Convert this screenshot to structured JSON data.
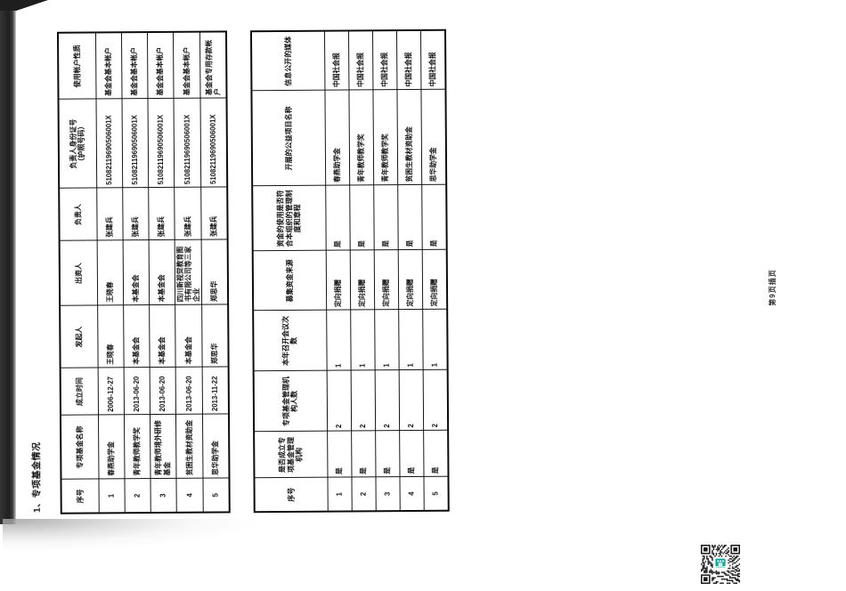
{
  "page": {
    "section_title": "1、专项基金情况",
    "side_label": "第9页插页"
  },
  "fund_table": {
    "headers": [
      "序号",
      "专项基金名称",
      "成立时间",
      "发起人",
      "出资人",
      "负责人",
      "负责人身份证号\n（护照号码）",
      "使用帐户性质"
    ],
    "rows": [
      [
        "1",
        "春燕助学金",
        "2006-12-27",
        "王晓春",
        "王晓春",
        "张建兵",
        "51082119690506001X",
        "基金会基本帐户"
      ],
      [
        "2",
        "青年教师教学奖",
        "2013-06-20",
        "本基金会",
        "本基金会",
        "张建兵",
        "51082119690506001X",
        "基金会基本帐户"
      ],
      [
        "3",
        "青年教师境外研修基金",
        "2013-06-20",
        "本基金会",
        "本基金会",
        "张建兵",
        "51082119690506001X",
        "基金会基本帐户"
      ],
      [
        "4",
        "贫困生教材资助金",
        "2013-06-20",
        "本基金会",
        "四川新视觉教育图书有限公司等三家企业",
        "张建兵",
        "51082119690506001X",
        "基金会基本帐户"
      ],
      [
        "5",
        "思华助学金",
        "2013-11-22",
        "郑思华",
        "郑思华",
        "张建兵",
        "51082119690506001X",
        "基金会专用存款帐户"
      ]
    ]
  },
  "management_table": {
    "headers": [
      "序号",
      "是否成立专项基金管理机构",
      "专项基金管理机构人数",
      "本年召开会议次数",
      "募集资金来源",
      "资金的使用是否符合本组织的管理制度和章程",
      "开展的公益项目名称",
      "信息公开的媒体"
    ],
    "rows": [
      [
        "1",
        "是",
        "2",
        "1",
        "定向捐赠",
        "是",
        "春燕助学金",
        "中国社会报"
      ],
      [
        "2",
        "是",
        "2",
        "1",
        "定向捐赠",
        "是",
        "青年教师教学奖",
        "中国社会报"
      ],
      [
        "3",
        "是",
        "2",
        "1",
        "定向捐赠",
        "是",
        "青年教师教学奖",
        "中国社会报"
      ],
      [
        "4",
        "是",
        "2",
        "1",
        "定向捐赠",
        "是",
        "贫困生教材资助金",
        "中国社会报"
      ],
      [
        "5",
        "是",
        "2",
        "1",
        "定向捐赠",
        "是",
        "思华助学金",
        "中国社会报"
      ]
    ]
  },
  "qr_code": {
    "accent_color": "#16a59a",
    "accent_light": "#8fe3da"
  }
}
